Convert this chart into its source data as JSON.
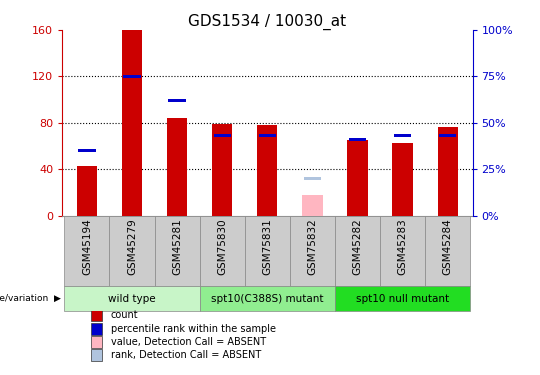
{
  "title": "GDS1534 / 10030_at",
  "samples": [
    "GSM45194",
    "GSM45279",
    "GSM45281",
    "GSM75830",
    "GSM75831",
    "GSM75832",
    "GSM45282",
    "GSM45283",
    "GSM45284"
  ],
  "count_values": [
    43,
    160,
    84,
    79,
    78,
    null,
    65,
    63,
    76
  ],
  "percentile_values": [
    35,
    75,
    62,
    43,
    43,
    null,
    41,
    43,
    43
  ],
  "absent_count": [
    null,
    null,
    null,
    null,
    null,
    18,
    null,
    null,
    null
  ],
  "absent_percentile": [
    null,
    null,
    null,
    null,
    null,
    20,
    null,
    null,
    null
  ],
  "ylim_left": [
    0,
    160
  ],
  "ylim_right": [
    0,
    100
  ],
  "yticks_left": [
    0,
    40,
    80,
    120,
    160
  ],
  "yticks_right": [
    0,
    25,
    50,
    75,
    100
  ],
  "ytick_labels_left": [
    "0",
    "40",
    "80",
    "120",
    "160"
  ],
  "ytick_labels_right": [
    "0%",
    "25%",
    "50%",
    "75%",
    "100%"
  ],
  "groups": [
    {
      "label": "wild type",
      "start": 0,
      "end": 2,
      "color": "#c8f5c8"
    },
    {
      "label": "spt10(C388S) mutant",
      "start": 3,
      "end": 5,
      "color": "#90ee90"
    },
    {
      "label": "spt10 null mutant",
      "start": 6,
      "end": 8,
      "color": "#22dd22"
    }
  ],
  "bar_width": 0.45,
  "count_color": "#cc0000",
  "percentile_color": "#0000cc",
  "absent_count_color": "#ffb6c1",
  "absent_percentile_color": "#b0c4de",
  "grid_color": "#000000",
  "background_color": "#ffffff",
  "plot_bg_color": "#ffffff",
  "left_axis_color": "#cc0000",
  "right_axis_color": "#0000cc",
  "legend_items": [
    {
      "label": "count",
      "color": "#cc0000"
    },
    {
      "label": "percentile rank within the sample",
      "color": "#0000cc"
    },
    {
      "label": "value, Detection Call = ABSENT",
      "color": "#ffb6c1"
    },
    {
      "label": "rank, Detection Call = ABSENT",
      "color": "#b0c4de"
    }
  ],
  "genotype_label": "genotype/variation",
  "sample_box_color": "#cccccc",
  "title_fontsize": 11,
  "tick_fontsize": 8,
  "label_fontsize": 7.5
}
